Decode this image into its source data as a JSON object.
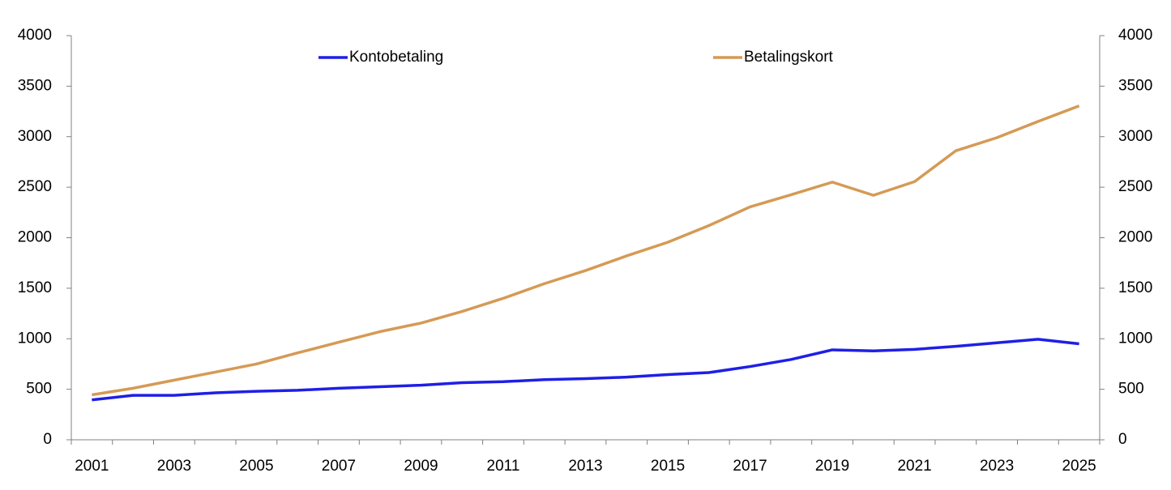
{
  "chart_data": {
    "type": "line",
    "categories": [
      "2001",
      null,
      "2003",
      null,
      "2005",
      null,
      "2007",
      null,
      "2009",
      null,
      "2011",
      null,
      "2013",
      null,
      "2015",
      null,
      "2017",
      null,
      "2019",
      null,
      "2021",
      null,
      "2023",
      null,
      "2025"
    ],
    "series": [
      {
        "name": "Kontobetaling",
        "color": "#1f1fe6",
        "values": [
          395,
          440,
          440,
          465,
          480,
          490,
          510,
          525,
          540,
          565,
          575,
          595,
          605,
          620,
          645,
          665,
          725,
          795,
          890,
          880,
          895,
          925,
          960,
          995,
          950
        ]
      },
      {
        "name": "Betalingskort",
        "color": "#d59a55",
        "values": [
          445,
          510,
          590,
          670,
          750,
          860,
          965,
          1070,
          1155,
          1270,
          1400,
          1545,
          1675,
          1820,
          1955,
          2120,
          2305,
          2425,
          2550,
          2420,
          2555,
          2860,
          2990,
          3150,
          3305
        ]
      }
    ],
    "ylim": [
      0,
      4000
    ],
    "yticks": [
      0,
      500,
      1000,
      1500,
      2000,
      2500,
      3000,
      3500,
      4000
    ],
    "y2lim": [
      0,
      4000
    ],
    "y2ticks": [
      0,
      500,
      1000,
      1500,
      2000,
      2500,
      3000,
      3500,
      4000
    ],
    "grid": false,
    "legend": "top"
  }
}
